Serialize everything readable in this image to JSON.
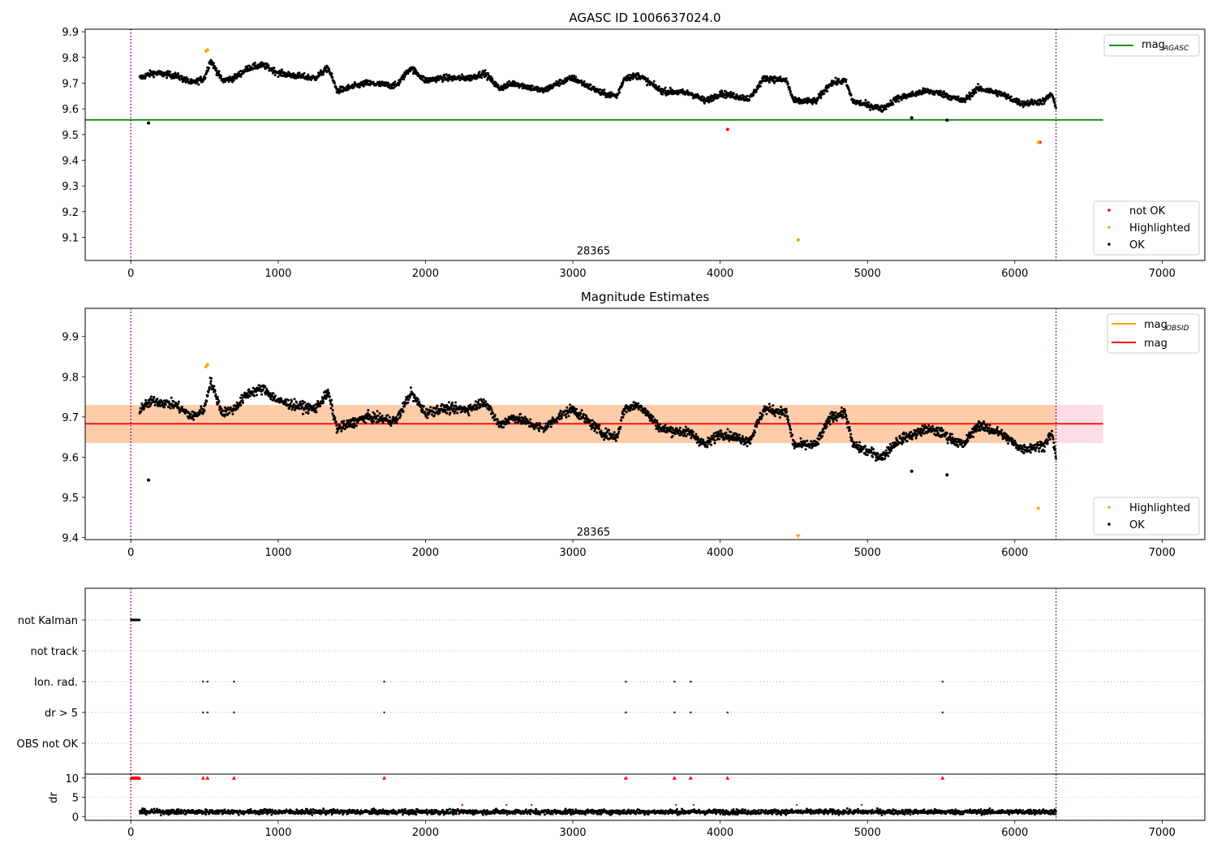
{
  "chart_data": [
    {
      "type": "scatter",
      "title": "AGASC ID 1006637024.0",
      "xlim": [
        -310,
        7290
      ],
      "ylim": [
        9.01,
        9.91
      ],
      "xticks": [
        0,
        1000,
        2000,
        3000,
        4000,
        5000,
        6000,
        7000
      ],
      "yticks": [
        9.1,
        9.2,
        9.3,
        9.4,
        9.5,
        9.6,
        9.7,
        9.8,
        9.9
      ],
      "vlines": [
        0,
        6280
      ],
      "annotation": {
        "text": "28365",
        "x": 3140,
        "y": 9.05
      },
      "hline": {
        "name": "mag_AGASC",
        "name_main": "mag",
        "name_sub": "AGASC",
        "y": 9.557,
        "x": [
          -310,
          6600
        ],
        "color": "#008000"
      },
      "legend_lines": "top-right",
      "legend_points": "bottom-right",
      "point_series": [
        {
          "name": "not OK",
          "color": "#ff0000",
          "points": [
            [
              4050,
              9.52
            ],
            [
              6170,
              9.47
            ]
          ]
        },
        {
          "name": "Highlighted",
          "color": "#ffa500",
          "points": [
            [
              510,
              9.825
            ],
            [
              520,
              9.83
            ],
            [
              4530,
              9.09
            ],
            [
              6160,
              9.47
            ]
          ]
        },
        {
          "name": "OK",
          "color": "#000000",
          "points": [
            [
              120,
              9.545
            ],
            [
              5540,
              9.556
            ],
            [
              5300,
              9.565
            ]
          ]
        }
      ],
      "trend": {
        "x_range": [
          60,
          6280
        ],
        "knots": [
          [
            60,
            9.72
          ],
          [
            150,
            9.74
          ],
          [
            300,
            9.73
          ],
          [
            420,
            9.7
          ],
          [
            500,
            9.72
          ],
          [
            540,
            9.79
          ],
          [
            620,
            9.71
          ],
          [
            700,
            9.72
          ],
          [
            800,
            9.76
          ],
          [
            900,
            9.77
          ],
          [
            1000,
            9.74
          ],
          [
            1100,
            9.73
          ],
          [
            1250,
            9.72
          ],
          [
            1340,
            9.76
          ],
          [
            1400,
            9.67
          ],
          [
            1600,
            9.7
          ],
          [
            1800,
            9.69
          ],
          [
            1900,
            9.76
          ],
          [
            2000,
            9.71
          ],
          [
            2100,
            9.72
          ],
          [
            2300,
            9.72
          ],
          [
            2400,
            9.74
          ],
          [
            2500,
            9.68
          ],
          [
            2600,
            9.7
          ],
          [
            2800,
            9.67
          ],
          [
            2900,
            9.7
          ],
          [
            3000,
            9.72
          ],
          [
            3200,
            9.66
          ],
          [
            3300,
            9.65
          ],
          [
            3350,
            9.72
          ],
          [
            3450,
            9.73
          ],
          [
            3600,
            9.67
          ],
          [
            3800,
            9.66
          ],
          [
            3900,
            9.63
          ],
          [
            4000,
            9.66
          ],
          [
            4200,
            9.64
          ],
          [
            4300,
            9.72
          ],
          [
            4450,
            9.71
          ],
          [
            4500,
            9.63
          ],
          [
            4650,
            9.63
          ],
          [
            4750,
            9.7
          ],
          [
            4850,
            9.71
          ],
          [
            4900,
            9.63
          ],
          [
            5100,
            9.6
          ],
          [
            5200,
            9.64
          ],
          [
            5400,
            9.67
          ],
          [
            5500,
            9.66
          ],
          [
            5650,
            9.63
          ],
          [
            5750,
            9.68
          ],
          [
            5900,
            9.66
          ],
          [
            6050,
            9.62
          ],
          [
            6200,
            9.63
          ],
          [
            6250,
            9.66
          ],
          [
            6280,
            9.6
          ]
        ],
        "noise": 0.012,
        "count": 2600,
        "color": "#000000"
      }
    },
    {
      "type": "scatter",
      "title": "Magnitude Estimates",
      "xlim": [
        -310,
        7290
      ],
      "ylim": [
        9.395,
        9.97
      ],
      "xticks": [
        0,
        1000,
        2000,
        3000,
        4000,
        5000,
        6000,
        7000
      ],
      "yticks": [
        9.4,
        9.5,
        9.6,
        9.7,
        9.8,
        9.9
      ],
      "vlines": [
        0,
        6280
      ],
      "annotation": {
        "text": "28365",
        "x": 3140,
        "y": 9.415
      },
      "band": {
        "x": [
          -310,
          6600
        ],
        "y_low": 9.635,
        "y_high": 9.73,
        "color_left": "#ffccaa",
        "color_right": "#ffdde4"
      },
      "hlines": [
        {
          "name": "mag_OBSID",
          "name_main": "mag",
          "name_sub": "OBSID",
          "color": "#ffa500",
          "y": null
        },
        {
          "name": "mag",
          "name_main": "mag",
          "name_sub": "",
          "color": "#ff0000",
          "y": 9.683,
          "x": [
            -310,
            6600
          ]
        }
      ],
      "legend_lines": "top-right",
      "legend_points": "bottom-right",
      "point_series": [
        {
          "name": "Highlighted",
          "color": "#ffa500",
          "points": [
            [
              510,
              9.825
            ],
            [
              520,
              9.83
            ],
            [
              4530,
              9.402
            ],
            [
              6160,
              9.473
            ]
          ]
        },
        {
          "name": "OK",
          "color": "#000000",
          "points": [
            [
              120,
              9.543
            ],
            [
              5540,
              9.556
            ],
            [
              5300,
              9.565
            ]
          ]
        }
      ]
    },
    {
      "type": "scatter",
      "xlim": [
        -310,
        7290
      ],
      "ylabel": "dr",
      "flag_rows": [
        "not Kalman",
        "not track",
        "Ion. rad.",
        "dr > 5",
        "OBS not OK"
      ],
      "flag_points": {
        "not Kalman": [
          [
            0,
            60
          ]
        ],
        "not track": [],
        "Ion. rad.": [
          490,
          520,
          700,
          1720,
          3360,
          3690,
          3800,
          5510
        ],
        "dr > 5": [
          490,
          520,
          700,
          1720,
          3360,
          3690,
          3800,
          4050,
          5510
        ],
        "OBS not OK": []
      },
      "dr_yticks": [
        0,
        5,
        10
      ],
      "dr_ylim": [
        -1,
        11
      ],
      "dr_red_markers": [
        490,
        520,
        700,
        1720,
        3360,
        3690,
        3800,
        4050,
        5510
      ],
      "dr_red_cluster": [
        0,
        60
      ],
      "dr_noise": {
        "x_range": [
          60,
          6280
        ],
        "mean": 1.2,
        "spread": 0.9,
        "count": 2600
      },
      "xticks": [
        0,
        1000,
        2000,
        3000,
        4000,
        5000,
        6000,
        7000
      ],
      "vlines": [
        0,
        6280
      ]
    }
  ]
}
